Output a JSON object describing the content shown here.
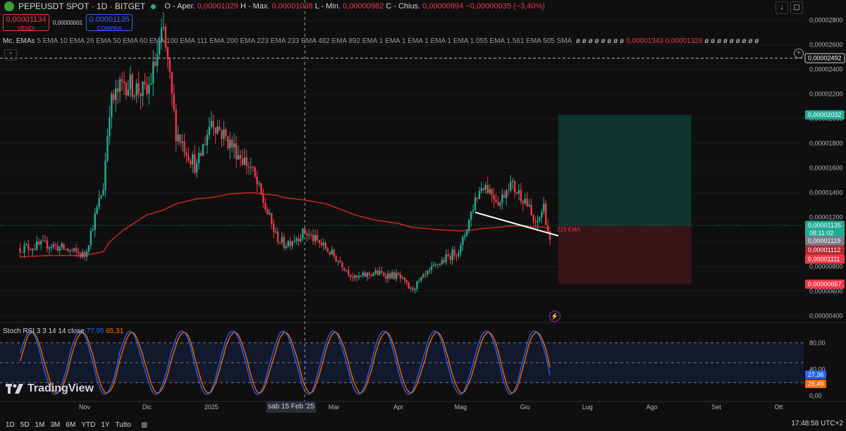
{
  "header": {
    "title": "PEPEUSDT SPOT · 1D · BITGET",
    "ohlc": {
      "open_label": "O - Aper.",
      "open": "0,00001029",
      "high_label": "H - Max.",
      "high": "0,00001038",
      "low_label": "L - Min.",
      "low": "0,00000982",
      "close_label": "C - Chius.",
      "close": "0,00000994",
      "change": "−0,00000035 (−3,40%)"
    }
  },
  "trade": {
    "sell_price": "0,00001134",
    "sell_label": "VENDI",
    "spread": "0,00000001",
    "buy_price": "0,00001135",
    "buy_label": "COMPRA"
  },
  "indicators": {
    "prefix": "Mc.",
    "name": "EMAs",
    "params": "5 EMA 10 EMA 26 EMA 50 EMA 60 EMA 100 EMA 111 EMA 200 EMA 223 EMA 233 EMA 482 EMA 892 EMA 1 EMA 1 EMA 1 EMA 1 EMA 1.055 EMA 1.561 EMA 505 SMA",
    "values_a": "ø ø ø ø ø ø ø ø",
    "value_1": "0,00001343",
    "value_2": "0,00001328",
    "values_b": "ø ø ø ø ø ø ø ø ø"
  },
  "ema_label": "223 EMA",
  "colors": {
    "up": "#22ab94",
    "down": "#f23645",
    "ema": "#c2251f",
    "stoch_k": "#2962ff",
    "stoch_d": "#ff6d00"
  },
  "price_axis": {
    "ticks": [
      "0,00002800",
      "0,00002600",
      "0,00002400",
      "0,00002200",
      "0,00002000",
      "0,00001800",
      "0,00001600",
      "0,00001400",
      "0,00001200",
      "0,00001000",
      "0,00000800",
      "0,00000600",
      "0,00000400"
    ],
    "badges": [
      {
        "text": "0,00002492",
        "kind": "line"
      },
      {
        "text": "0,00002032",
        "kind": "target"
      },
      {
        "text": "0,00001135",
        "kind": "last",
        "sub": "08:11:02"
      },
      {
        "text": "0,00001119",
        "kind": "gray"
      },
      {
        "text": "0,00001112",
        "kind": "red"
      },
      {
        "text": "0,00001111",
        "kind": "redsolid"
      },
      {
        "text": "0,00000657",
        "kind": "stop"
      }
    ]
  },
  "stoch": {
    "legend_name": "Stoch RSI",
    "legend_params": "3 3 14 14 close",
    "k_value": "77,95",
    "d_value": "65,31",
    "axis_ticks": [
      "80,00",
      "40,00",
      "0,00"
    ],
    "badge_k": "27,36",
    "badge_d": "26,49"
  },
  "time_axis": {
    "labels": [
      "Nov",
      "Dic",
      "2025",
      "Feb",
      "Mar",
      "Apr",
      "Mag",
      "Giu",
      "Lug",
      "Ago",
      "Set",
      "Ott"
    ],
    "crosshair_label": "sab 15 Feb '25"
  },
  "timeframes": [
    "1D",
    "5D",
    "1M",
    "3M",
    "6M",
    "YTD",
    "1Y",
    "Tutto"
  ],
  "clock": "17:48:58 UTC+2",
  "logo": "TradingView",
  "chart_data": {
    "type": "candlestick",
    "title": "PEPEUSDT SPOT · 1D · BITGET",
    "xlabel": "",
    "ylabel": "",
    "ylim": [
      3.8e-06,
      2.85e-05
    ],
    "x": [
      "2024-10-01",
      "2024-10-15",
      "2024-11-01",
      "2024-11-10",
      "2024-11-13",
      "2024-11-20",
      "2024-12-01",
      "2024-12-09",
      "2024-12-15",
      "2024-12-25",
      "2025-01-01",
      "2025-01-10",
      "2025-01-20",
      "2025-02-01",
      "2025-02-05",
      "2025-02-15",
      "2025-02-25",
      "2025-03-05",
      "2025-03-11",
      "2025-03-20",
      "2025-04-01",
      "2025-04-07",
      "2025-04-20",
      "2025-05-01",
      "2025-05-08",
      "2025-05-12",
      "2025-05-20",
      "2025-05-24",
      "2025-06-01",
      "2025-06-06",
      "2025-06-10",
      "2025-06-13"
    ],
    "close": [
      9.5e-06,
      9.8e-06,
      8.9e-06,
      1.45e-05,
      2.1e-05,
      2.3e-05,
      2.2e-05,
      2.7e-05,
      1.9e-05,
      1.6e-05,
      2e-05,
      1.8e-05,
      1.6e-05,
      1.05e-05,
      9.8e-06,
      1.08e-05,
      9.5e-06,
      8.2e-06,
      7e-06,
      7.5e-06,
      7.2e-06,
      6.1e-06,
      8.2e-06,
      9.5e-06,
      1.35e-05,
      1.48e-05,
      1.32e-05,
      1.48e-05,
      1.35e-05,
      1.12e-05,
      1.29e-05,
      9.9e-06
    ],
    "ema": [
      8.8e-06,
      8.9e-06,
      8.9e-06,
      9.2e-06,
      1e-05,
      1.1e-05,
      1.22e-05,
      1.26e-05,
      1.31e-05,
      1.35e-05,
      1.36e-05,
      1.39e-05,
      1.4e-05,
      1.38e-05,
      1.36e-05,
      1.34e-05,
      1.31e-05,
      1.26e-05,
      1.22e-05,
      1.18e-05,
      1.15e-05,
      1.12e-05,
      1.1e-05,
      1.09e-05,
      1.1e-05,
      1.11e-05,
      1.12e-05,
      1.13e-05,
      1.13e-05,
      1.12e-05,
      1.12e-05,
      1.11e-05
    ],
    "position": {
      "entry": 1.135e-05,
      "target": 2.032e-05,
      "stop": 6.57e-06
    },
    "horizontal_line": 2.492e-05,
    "stoch_rsi": {
      "k_last": 77.95,
      "d_last": 65.31,
      "bands": [
        80,
        20
      ],
      "ylim": [
        0,
        100
      ]
    }
  }
}
